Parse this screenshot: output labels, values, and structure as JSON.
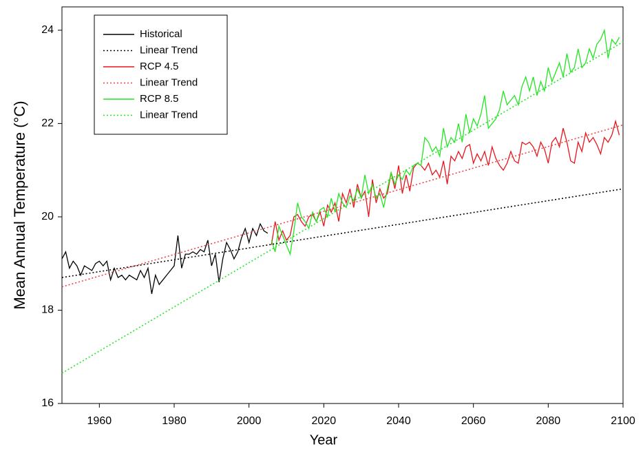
{
  "chart_data": {
    "type": "line",
    "xlabel": "Year",
    "ylabel": "Mean Annual Temperature (°C)",
    "xlim": [
      1950,
      2100
    ],
    "xticks": [
      1960,
      1980,
      2000,
      2020,
      2040,
      2060,
      2080,
      2100
    ],
    "ylim": [
      16,
      24.5
    ],
    "yticks": [
      16,
      18,
      20,
      22,
      24
    ],
    "legend": "upper left",
    "series": [
      {
        "name": "Historical",
        "color": "#000000",
        "dash": "solid",
        "x": [
          1950,
          1951,
          1952,
          1953,
          1954,
          1955,
          1956,
          1957,
          1958,
          1959,
          1960,
          1961,
          1962,
          1963,
          1964,
          1965,
          1966,
          1967,
          1968,
          1969,
          1970,
          1971,
          1972,
          1973,
          1974,
          1975,
          1976,
          1977,
          1978,
          1979,
          1980,
          1981,
          1982,
          1983,
          1984,
          1985,
          1986,
          1987,
          1988,
          1989,
          1990,
          1991,
          1992,
          1993,
          1994,
          1995,
          1996,
          1997,
          1998,
          1999,
          2000,
          2001,
          2002,
          2003,
          2004,
          2005
        ],
        "values": [
          19.1,
          19.25,
          18.9,
          19.05,
          18.95,
          18.75,
          18.95,
          18.9,
          18.85,
          19.0,
          19.05,
          18.95,
          19.05,
          18.65,
          18.9,
          18.7,
          18.75,
          18.65,
          18.75,
          18.7,
          18.65,
          18.85,
          18.7,
          18.9,
          18.35,
          18.75,
          18.55,
          18.65,
          18.75,
          18.85,
          18.95,
          19.6,
          18.9,
          19.2,
          19.2,
          19.25,
          19.2,
          19.3,
          19.25,
          19.5,
          18.95,
          19.2,
          18.6,
          19.1,
          19.45,
          19.3,
          19.1,
          19.25,
          19.55,
          19.75,
          19.45,
          19.75,
          19.6,
          19.85,
          19.7,
          19.65
        ]
      },
      {
        "name": "Linear Trend",
        "color": "#000000",
        "dash": "dotted",
        "x": [
          1950,
          2100
        ],
        "values": [
          18.7,
          20.6
        ]
      },
      {
        "name": "RCP 4.5",
        "color": "#e8141c",
        "dash": "solid",
        "x": [
          2006,
          2007,
          2008,
          2009,
          2010,
          2011,
          2012,
          2013,
          2014,
          2015,
          2016,
          2017,
          2018,
          2019,
          2020,
          2021,
          2022,
          2023,
          2024,
          2025,
          2026,
          2027,
          2028,
          2029,
          2030,
          2031,
          2032,
          2033,
          2034,
          2035,
          2036,
          2037,
          2038,
          2039,
          2040,
          2041,
          2042,
          2043,
          2044,
          2045,
          2046,
          2047,
          2048,
          2049,
          2050,
          2051,
          2052,
          2053,
          2054,
          2055,
          2056,
          2057,
          2058,
          2059,
          2060,
          2061,
          2062,
          2063,
          2064,
          2065,
          2066,
          2067,
          2068,
          2069,
          2070,
          2071,
          2072,
          2073,
          2074,
          2075,
          2076,
          2077,
          2078,
          2079,
          2080,
          2081,
          2082,
          2083,
          2084,
          2085,
          2086,
          2087,
          2088,
          2089,
          2090,
          2091,
          2092,
          2093,
          2094,
          2095,
          2096,
          2097,
          2098,
          2099
        ],
        "values": [
          19.4,
          19.9,
          19.5,
          19.7,
          19.5,
          19.6,
          20.0,
          20.05,
          19.9,
          19.8,
          20.0,
          20.05,
          19.9,
          20.1,
          19.8,
          20.25,
          20.1,
          20.3,
          19.9,
          20.5,
          20.3,
          20.6,
          20.2,
          20.7,
          20.4,
          20.55,
          20.0,
          20.8,
          20.3,
          20.6,
          20.4,
          20.5,
          20.95,
          20.6,
          21.1,
          20.5,
          20.9,
          20.55,
          21.05,
          21.15,
          21.1,
          21.0,
          21.15,
          20.9,
          21.0,
          20.85,
          21.2,
          20.7,
          21.3,
          21.2,
          21.4,
          21.25,
          21.5,
          21.55,
          21.15,
          21.35,
          21.2,
          21.4,
          21.1,
          21.5,
          21.25,
          21.1,
          21.0,
          21.15,
          21.4,
          21.2,
          21.15,
          21.6,
          21.55,
          21.6,
          21.5,
          21.3,
          21.6,
          21.45,
          21.15,
          21.6,
          21.7,
          21.5,
          21.9,
          21.6,
          21.2,
          21.15,
          21.6,
          21.4,
          21.8,
          21.6,
          21.7,
          21.55,
          21.35,
          21.7,
          21.6,
          21.75,
          22.05,
          21.75
        ]
      },
      {
        "name": "Linear Trend",
        "color": "#f04040",
        "dash": "dotted",
        "x": [
          1950,
          2100
        ],
        "values": [
          18.5,
          21.97
        ]
      },
      {
        "name": "RCP 8.5",
        "color": "#22e622",
        "dash": "solid",
        "x": [
          2006,
          2007,
          2008,
          2009,
          2010,
          2011,
          2012,
          2013,
          2014,
          2015,
          2016,
          2017,
          2018,
          2019,
          2020,
          2021,
          2022,
          2023,
          2024,
          2025,
          2026,
          2027,
          2028,
          2029,
          2030,
          2031,
          2032,
          2033,
          2034,
          2035,
          2036,
          2037,
          2038,
          2039,
          2040,
          2041,
          2042,
          2043,
          2044,
          2045,
          2046,
          2047,
          2048,
          2049,
          2050,
          2051,
          2052,
          2053,
          2054,
          2055,
          2056,
          2057,
          2058,
          2059,
          2060,
          2061,
          2062,
          2063,
          2064,
          2065,
          2066,
          2067,
          2068,
          2069,
          2070,
          2071,
          2072,
          2073,
          2074,
          2075,
          2076,
          2077,
          2078,
          2079,
          2080,
          2081,
          2082,
          2083,
          2084,
          2085,
          2086,
          2087,
          2088,
          2089,
          2090,
          2091,
          2092,
          2093,
          2094,
          2095,
          2096,
          2097,
          2098,
          2099
        ],
        "values": [
          19.5,
          19.25,
          19.8,
          19.6,
          19.4,
          19.2,
          19.7,
          20.3,
          20.0,
          19.9,
          19.75,
          20.1,
          19.9,
          20.15,
          20.2,
          20.0,
          20.4,
          20.1,
          20.5,
          20.3,
          20.2,
          20.45,
          20.35,
          20.6,
          20.4,
          20.9,
          20.5,
          20.7,
          20.4,
          20.5,
          20.2,
          20.6,
          20.95,
          20.7,
          20.9,
          20.8,
          21.0,
          20.9,
          21.1,
          21.15,
          21.1,
          21.7,
          21.6,
          21.4,
          21.5,
          21.3,
          21.9,
          21.5,
          21.7,
          21.6,
          22.0,
          21.6,
          22.2,
          21.8,
          22.1,
          21.95,
          22.2,
          22.6,
          21.9,
          22.0,
          22.1,
          22.3,
          22.7,
          22.4,
          22.5,
          22.6,
          22.4,
          22.8,
          23.0,
          22.7,
          23.0,
          22.6,
          22.9,
          22.7,
          23.2,
          22.9,
          23.1,
          23.3,
          23.0,
          23.5,
          23.1,
          23.2,
          23.6,
          23.2,
          23.3,
          23.6,
          23.4,
          23.7,
          23.8,
          24.0,
          23.4,
          23.8,
          23.7,
          23.85
        ]
      },
      {
        "name": "Linear Trend",
        "color": "#22e622",
        "dash": "dotted",
        "x": [
          1950,
          2100
        ],
        "values": [
          16.65,
          23.75
        ]
      }
    ]
  }
}
